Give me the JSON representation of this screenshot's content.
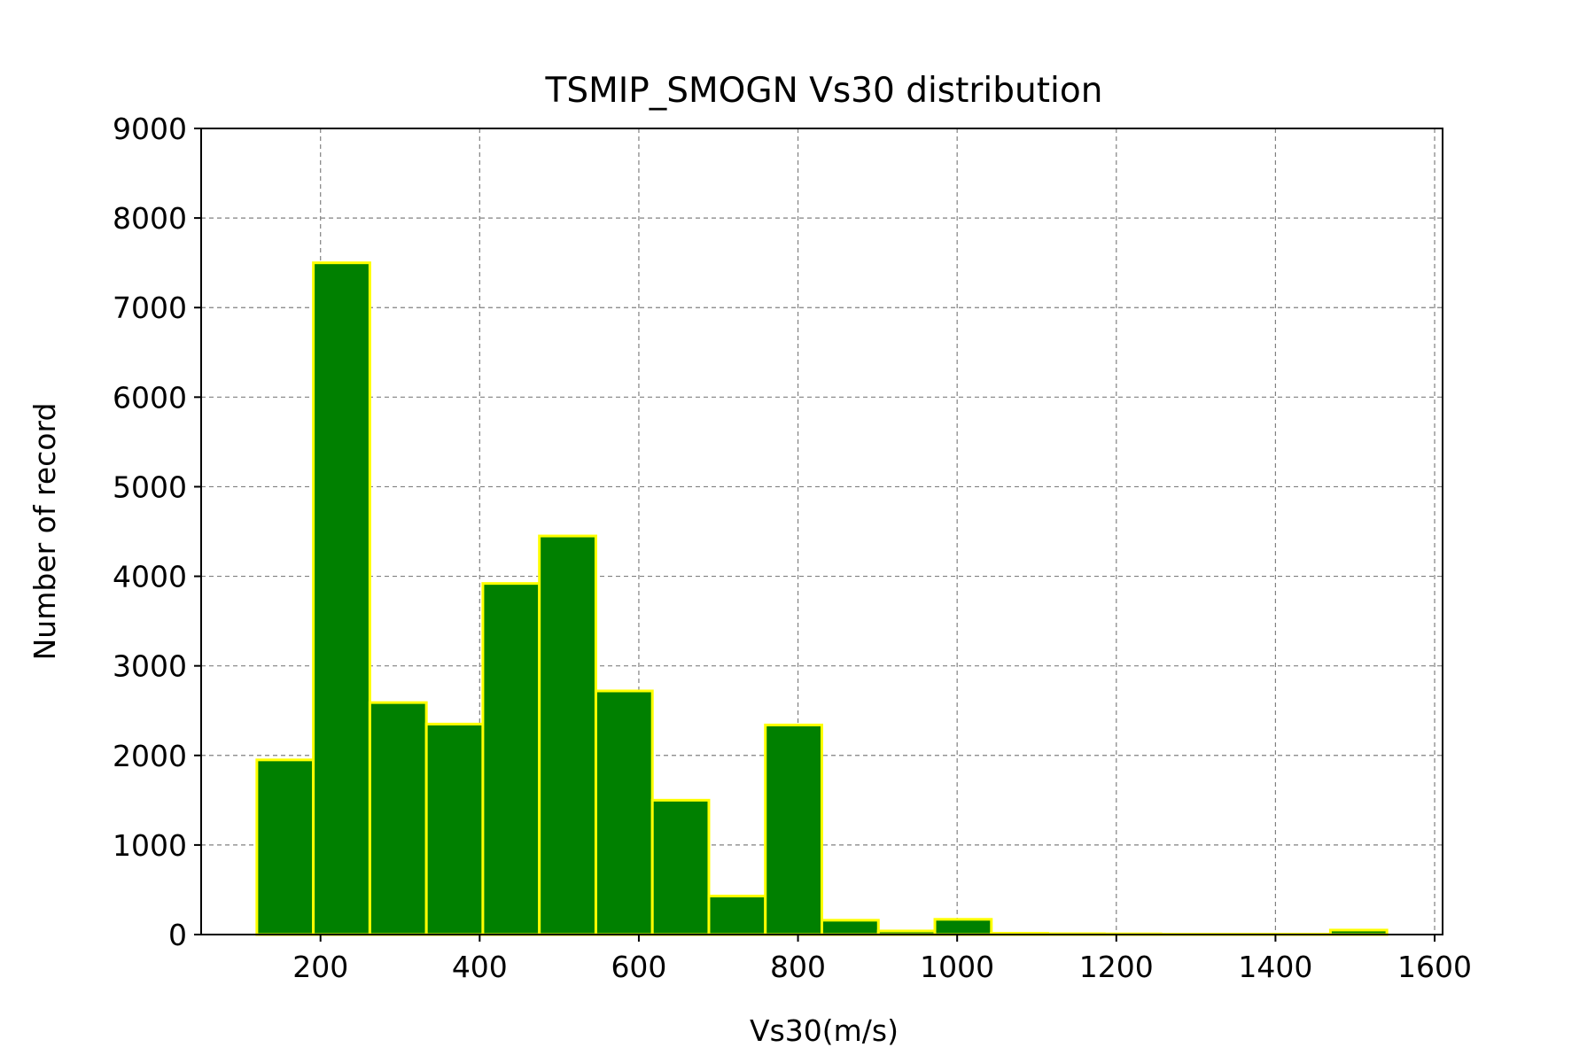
{
  "chart_data": {
    "type": "bar",
    "title": "TSMIP_SMOGN Vs30 distribution",
    "xlabel": "Vs30(m/s)",
    "ylabel": "Number of record",
    "xlim": [
      50,
      1610
    ],
    "ylim": [
      0,
      9000
    ],
    "xticks": [
      200,
      400,
      600,
      800,
      1000,
      1200,
      1400,
      1600
    ],
    "yticks": [
      0,
      1000,
      2000,
      3000,
      4000,
      5000,
      6000,
      7000,
      8000,
      9000
    ],
    "grid": true,
    "bin_edges": [
      120,
      191,
      262,
      333,
      404,
      475,
      546,
      617,
      688,
      759,
      830,
      901,
      972,
      1043,
      1114,
      1185,
      1256,
      1327,
      1398,
      1469,
      1540
    ],
    "values": [
      1950,
      7500,
      2590,
      2350,
      3920,
      4450,
      2720,
      1500,
      430,
      2340,
      160,
      40,
      170,
      15,
      10,
      8,
      5,
      5,
      5,
      50
    ],
    "colors": {
      "bar_fill": "#008000",
      "bar_edge": "#ffff00",
      "grid": "#808080",
      "axis": "#000000"
    }
  }
}
